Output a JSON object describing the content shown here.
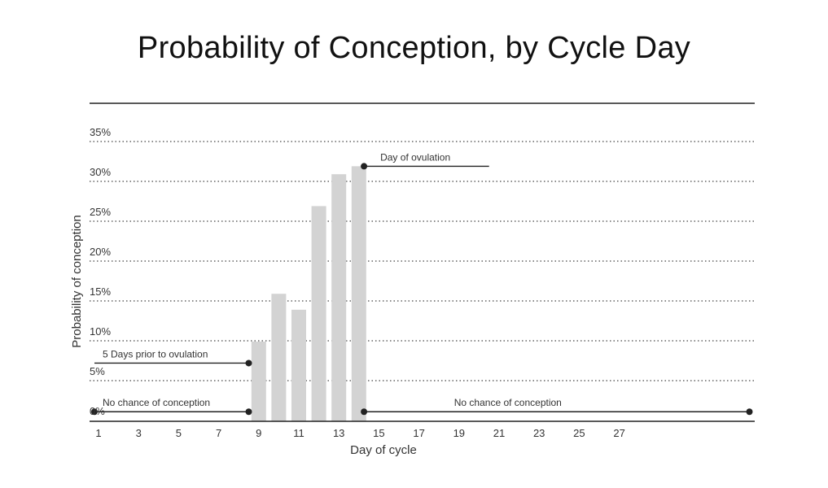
{
  "chart_data": {
    "type": "bar",
    "title": "Probability of Conception, by Cycle Day",
    "xlabel": "Day of cycle",
    "ylabel": "Probability of conception",
    "x_ticks": [
      "1",
      "3",
      "5",
      "7",
      "9",
      "11",
      "13",
      "15",
      "17",
      "19",
      "21",
      "23",
      "25",
      "27"
    ],
    "y_ticks": [
      "0%",
      "5%",
      "10%",
      "15%",
      "20%",
      "25%",
      "30%",
      "35%"
    ],
    "xlim": [
      1,
      34
    ],
    "ylim": [
      0,
      35
    ],
    "grid": true,
    "bar_color": "#d3d3d3",
    "days": [
      9,
      10,
      11,
      12,
      13,
      14
    ],
    "values": [
      10,
      16,
      14,
      27,
      31,
      32
    ],
    "annotations": [
      {
        "text": "Day of ovulation",
        "day_start": 14.5,
        "day_end": 20.5,
        "value": 32
      },
      {
        "text": "5 Days prior to ovulation",
        "day_start": 1,
        "day_end": 8.5,
        "value": 7.3
      },
      {
        "text": "No chance of conception",
        "day_start": 1,
        "day_end": 8.5,
        "value": 1.2
      },
      {
        "text": "No chance of conception",
        "day_start": 14.5,
        "day_end": 33.5,
        "value": 1.2
      }
    ]
  }
}
